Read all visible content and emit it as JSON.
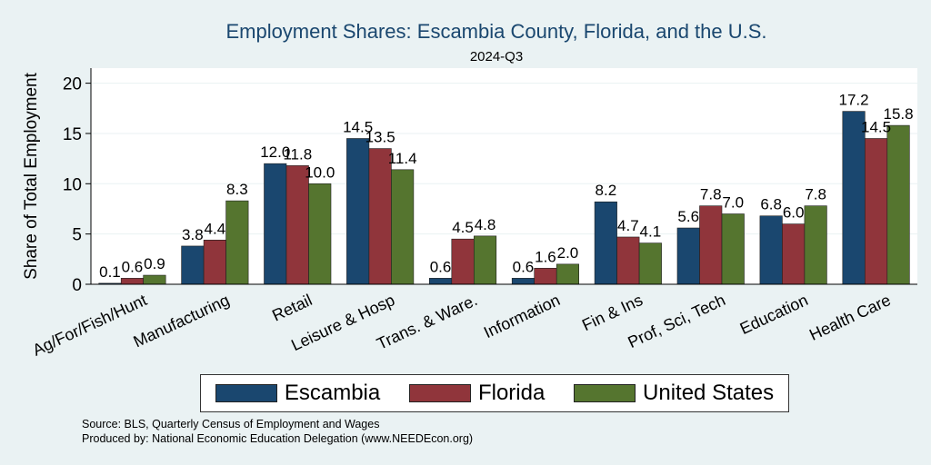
{
  "chart_data": {
    "type": "bar",
    "title": "Employment Shares: Escambia County, Florida, and the U.S.",
    "subtitle": "2024-Q3",
    "xlabel": "",
    "ylabel": "Share of Total Employment",
    "ylim": [
      0,
      21.5
    ],
    "yticks": [
      0,
      5,
      10,
      15,
      20
    ],
    "grid": true,
    "legend_position": "bottom",
    "categories": [
      "Ag/For/Fish/Hunt",
      "Manufacturing",
      "Retail",
      "Leisure & Hosp",
      "Trans. & Ware.",
      "Information",
      "Fin & Ins",
      "Prof, Sci, Tech",
      "Education",
      "Health Care"
    ],
    "series": [
      {
        "name": "Escambia",
        "color": "#1a476f",
        "values": [
          0.1,
          3.8,
          12.0,
          14.5,
          0.6,
          0.6,
          8.2,
          5.6,
          6.8,
          17.2
        ]
      },
      {
        "name": "Florida",
        "color": "#90353b",
        "values": [
          0.6,
          4.4,
          11.8,
          13.5,
          4.5,
          1.6,
          4.7,
          7.8,
          6.0,
          14.5
        ]
      },
      {
        "name": "United States",
        "color": "#55752f",
        "values": [
          0.9,
          8.3,
          10.0,
          11.4,
          4.8,
          2.0,
          4.1,
          7.0,
          7.8,
          15.8
        ]
      }
    ]
  },
  "footer": {
    "source": "Source: BLS, Quarterly Census of Employment and Wages",
    "produced_by": "Produced by: National Economic Education Delegation (www.NEEDEcon.org)"
  }
}
